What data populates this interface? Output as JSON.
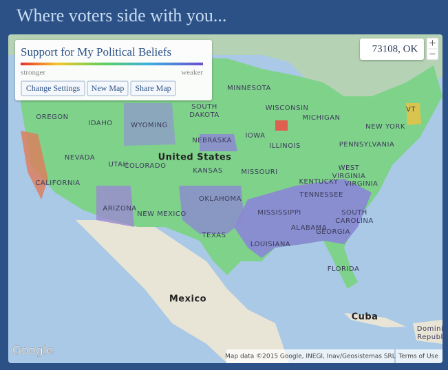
{
  "header": {
    "title": "Where voters side with you..."
  },
  "legend": {
    "title": "Support for My Political Beliefs",
    "low_label": "stronger",
    "high_label": "weaker"
  },
  "buttons": [
    "Change Settings",
    "New Map",
    "Share Map"
  ],
  "location": "73108, OK",
  "zoom": {
    "in": "+",
    "out": "−"
  },
  "map_labels": [
    {
      "lines": [
        "MINNESOTA"
      ]
    },
    {
      "lines": [
        "WISCONSIN"
      ]
    },
    {
      "lines": [
        "MICHIGAN"
      ]
    },
    {
      "lines": [
        "SOUTH",
        "DAKOTA"
      ]
    },
    {
      "lines": [
        "OREGON"
      ]
    },
    {
      "lines": [
        "IDAHO"
      ]
    },
    {
      "lines": [
        "WYOMING"
      ]
    },
    {
      "lines": [
        "NEBRASKA"
      ]
    },
    {
      "lines": [
        "IOWA"
      ]
    },
    {
      "lines": [
        "ILLINOIS"
      ]
    },
    {
      "lines": [
        "NEVADA"
      ]
    },
    {
      "lines": [
        "UTAH"
      ]
    },
    {
      "lines": [
        "COLORADO"
      ]
    },
    {
      "lines": [
        "United States"
      ]
    },
    {
      "lines": [
        "KANSAS"
      ]
    },
    {
      "lines": [
        "MISSOURI"
      ]
    },
    {
      "lines": [
        "PENNSYLVANIA"
      ]
    },
    {
      "lines": [
        "NEW YORK"
      ]
    },
    {
      "lines": [
        "VT"
      ]
    },
    {
      "lines": [
        "WEST",
        "VIRGINIA"
      ]
    },
    {
      "lines": [
        "VIRGINIA"
      ]
    },
    {
      "lines": [
        "KENTUCKY"
      ]
    },
    {
      "lines": [
        "CALIFORNIA"
      ]
    },
    {
      "lines": [
        "ARIZONA"
      ]
    },
    {
      "lines": [
        "NEW MEXICO"
      ]
    },
    {
      "lines": [
        "OKLAHOMA"
      ]
    },
    {
      "lines": [
        "TENNESSEE"
      ]
    },
    {
      "lines": [
        "SOUTH",
        "CAROLINA"
      ]
    },
    {
      "lines": [
        "MISSISSIPPI"
      ]
    },
    {
      "lines": [
        "ALABAMA"
      ]
    },
    {
      "lines": [
        "GEORGIA"
      ]
    },
    {
      "lines": [
        "TEXAS"
      ]
    },
    {
      "lines": [
        "LOUISIANA"
      ]
    },
    {
      "lines": [
        "FLORIDA"
      ]
    },
    {
      "lines": [
        "Mexico"
      ]
    },
    {
      "lines": [
        "Cuba"
      ]
    },
    {
      "lines": [
        "Domini",
        "Republ"
      ]
    }
  ],
  "attribution": {
    "logo": "Google",
    "map_data": "Map data ©2015 Google, INEGI, Inav/Geosistemas SRL",
    "terms": "Terms of Use"
  }
}
